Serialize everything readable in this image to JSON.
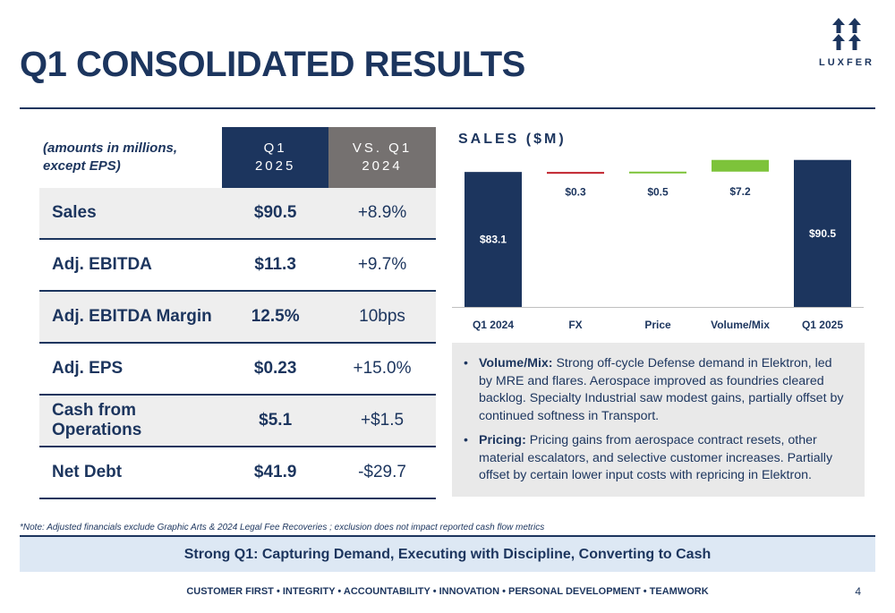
{
  "title": "Q1 CONSOLIDATED RESULTS",
  "logo": {
    "name": "LUXFER"
  },
  "table": {
    "note_line1": "(amounts in millions,",
    "note_line2": "except EPS)",
    "col1_line1": "Q1",
    "col1_line2": "2025",
    "col2_line1": "VS. Q1",
    "col2_line2": "2024",
    "rows": [
      {
        "label": "Sales",
        "value": "$90.5",
        "change": "+8.9%"
      },
      {
        "label": "Adj. EBITDA",
        "value": "$11.3",
        "change": "+9.7%"
      },
      {
        "label": "Adj. EBITDA Margin",
        "value": "12.5%",
        "change": "10bps"
      },
      {
        "label": "Adj. EPS",
        "value": "$0.23",
        "change": "+15.0%"
      },
      {
        "label": "Cash from Operations",
        "value": "$5.1",
        "change": "+$1.5"
      },
      {
        "label": "Net Debt",
        "value": "$41.9",
        "change": "-$29.7"
      }
    ]
  },
  "chart_data": {
    "type": "bar",
    "subtype": "waterfall",
    "title": "SALES ($M)",
    "categories": [
      "Q1 2024",
      "FX",
      "Price",
      "Volume/Mix",
      "Q1 2025"
    ],
    "values": [
      83.1,
      -0.3,
      0.5,
      7.2,
      90.5
    ],
    "labels": [
      "$83.1",
      "$0.3",
      "$0.5",
      "$7.2",
      "$90.5"
    ],
    "kinds": [
      "total",
      "delta",
      "delta",
      "delta",
      "total"
    ],
    "colors": {
      "total": "#1c355e",
      "increase": "#7dc33a",
      "decrease": "#c0202a"
    },
    "ylim": [
      0,
      92
    ],
    "grid": false
  },
  "commentary": [
    {
      "label": "Volume/Mix:",
      "text": " Strong off-cycle Defense demand in Elektron, led by MRE and flares. Aerospace improved as foundries cleared backlog. Specialty Industrial saw modest gains, partially offset by continued softness in Transport."
    },
    {
      "label": "Pricing:",
      "text": " Pricing gains from aerospace contract resets, other material escalators, and selective customer increases. Partially offset by certain lower input costs with repricing in Elektron."
    }
  ],
  "footnote": "*Note:  Adjusted financials exclude Graphic Arts & 2024 Legal Fee Recoveries ;  exclusion does not impact reported cash flow metrics",
  "banner": "Strong Q1: Capturing Demand, Executing with Discipline, Converting to Cash",
  "values_line": "CUSTOMER FIRST • INTEGRITY • ACCOUNTABILITY • INNOVATION • PERSONAL DEVELOPMENT • TEAMWORK",
  "page_number": "4"
}
